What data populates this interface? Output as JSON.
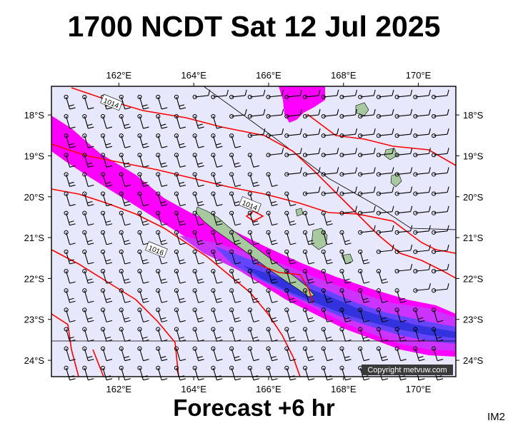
{
  "title": "1700 NCDT Sat 12 Jul 2025",
  "subtitle": "Forecast +6 hr",
  "code": "IM2",
  "copyright": "Copyright metvuw.com",
  "map": {
    "lon_range": [
      160.2,
      171.0
    ],
    "lat_range": [
      -24.4,
      -17.3
    ],
    "lon_ticks": [
      "162°E",
      "164°E",
      "166°E",
      "168°E",
      "170°E"
    ],
    "lon_tick_values": [
      162,
      164,
      166,
      168,
      170
    ],
    "lat_ticks": [
      "18°S",
      "19°S",
      "20°S",
      "21°S",
      "22°S",
      "23°S",
      "24°S"
    ],
    "lat_tick_values": [
      -18,
      -19,
      -20,
      -21,
      -22,
      -23,
      -24
    ],
    "isobar_labels": [
      {
        "text": "1014",
        "lon": 161.8,
        "lat": -17.7
      },
      {
        "text": "1014",
        "lon": 165.5,
        "lat": -20.2
      },
      {
        "text": "1016",
        "lon": 163.0,
        "lat": -21.3
      }
    ],
    "colors": {
      "background": "#e8e8fc",
      "rain_light": "#ff00ff",
      "rain_moderate": "#cc33ff",
      "rain_heavy": "#6644ff",
      "rain_very_heavy": "#3333dd",
      "isobar": "#ff0000",
      "land": "#a8c8a0"
    }
  }
}
